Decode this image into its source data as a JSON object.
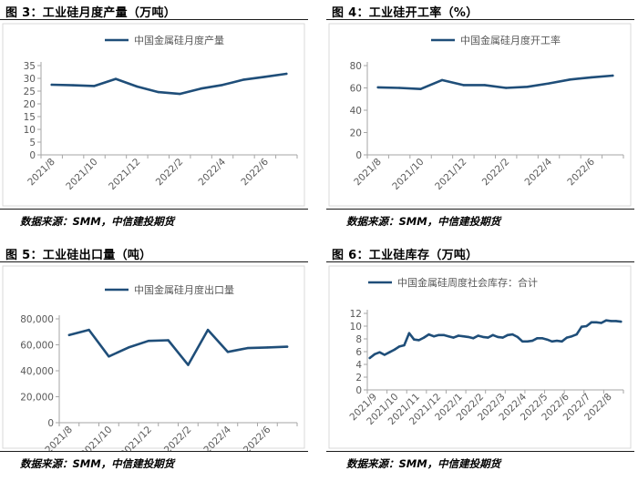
{
  "panels": [
    {
      "id": "fig3",
      "title": "图 3：工业硅月度产量（万吨）",
      "source": "数据来源：SMM，中信建投期货",
      "chart_data": {
        "type": "line",
        "x": [
          "2021/8",
          "2021/9",
          "2021/10",
          "2021/11",
          "2021/12",
          "2022/1",
          "2022/2",
          "2022/3",
          "2022/4",
          "2022/5",
          "2022/6",
          "2022/7"
        ],
        "x_tick_labels": [
          "2021/8",
          "2021/10",
          "2021/12",
          "2022/2",
          "2022/4",
          "2022/6"
        ],
        "y_tick_labels": [
          "0",
          "5",
          "10",
          "15",
          "20",
          "25",
          "30",
          "35"
        ],
        "ylim": [
          0,
          35
        ],
        "grid": false,
        "legend_position": "top-left",
        "series": [
          {
            "name": "中国金属硅月度产量",
            "color": "#1f4e79",
            "values": [
              27.5,
              27.3,
              27.0,
              29.8,
              26.8,
              24.6,
              23.9,
              26.0,
              27.4,
              29.5,
              30.6,
              31.8
            ]
          }
        ]
      }
    },
    {
      "id": "fig4",
      "title": "图 4：工业硅开工率（%）",
      "source": "数据来源：SMM，中信建投期货",
      "chart_data": {
        "type": "line",
        "x": [
          "2021/8",
          "2021/9",
          "2021/10",
          "2021/11",
          "2021/12",
          "2022/1",
          "2022/2",
          "2022/3",
          "2022/4",
          "2022/5",
          "2022/6",
          "2022/7"
        ],
        "x_tick_labels": [
          "2021/8",
          "2021/10",
          "2021/12",
          "2022/2",
          "2022/4",
          "2022/6"
        ],
        "y_tick_labels": [
          "0",
          "20",
          "40",
          "60",
          "80"
        ],
        "ylim": [
          0,
          80
        ],
        "grid": false,
        "legend_position": "top-left",
        "series": [
          {
            "name": "中国金属硅月度开工率",
            "color": "#1f4e79",
            "values": [
              60.5,
              60.0,
              59.0,
              67.0,
              62.5,
              62.5,
              60.0,
              61.0,
              64.0,
              67.5,
              69.5,
              71.0
            ]
          }
        ]
      }
    },
    {
      "id": "fig5",
      "title": "图 5：工业硅出口量（吨）",
      "source": "数据来源：SMM，中信建投期货",
      "chart_data": {
        "type": "line",
        "x": [
          "2021/8",
          "2021/9",
          "2021/10",
          "2021/11",
          "2021/12",
          "2022/1",
          "2022/2",
          "2022/3",
          "2022/4",
          "2022/5",
          "2022/6",
          "2022/7"
        ],
        "x_tick_labels": [
          "2021/8",
          "2021/10",
          "2021/12",
          "2022/2",
          "2022/4",
          "2022/6"
        ],
        "y_tick_labels": [
          "0",
          "20,000",
          "40,000",
          "60,000",
          "80,000"
        ],
        "ylim": [
          0,
          80000
        ],
        "grid": false,
        "legend_position": "top-left",
        "series": [
          {
            "name": "中国金属硅月度出口量",
            "color": "#1f4e79",
            "values": [
              67500,
              71500,
              51000,
              58000,
              63000,
              63500,
              44500,
              71500,
              54500,
              57500,
              58000,
              58500
            ]
          }
        ]
      }
    },
    {
      "id": "fig6",
      "title": "图 6：工业硅库存（万吨）",
      "source": "数据来源：SMM，中信建投期货",
      "chart_data": {
        "type": "line",
        "x": [
          "2021/9/3",
          "2021/9/10",
          "2021/9/17",
          "2021/9/24",
          "2021/10/1",
          "2021/10/8",
          "2021/10/15",
          "2021/10/22",
          "2021/10/29",
          "2021/11/5",
          "2021/11/12",
          "2021/11/19",
          "2021/11/26",
          "2021/12/3",
          "2021/12/10",
          "2021/12/17",
          "2021/12/24",
          "2021/12/31",
          "2022/1/7",
          "2022/1/14",
          "2022/1/21",
          "2022/1/28",
          "2022/2/4",
          "2022/2/11",
          "2022/2/18",
          "2022/2/25",
          "2022/3/4",
          "2022/3/11",
          "2022/3/18",
          "2022/3/25",
          "2022/4/1",
          "2022/4/8",
          "2022/4/15",
          "2022/4/22",
          "2022/4/29",
          "2022/5/6",
          "2022/5/13",
          "2022/5/20",
          "2022/5/27",
          "2022/6/3",
          "2022/6/10",
          "2022/6/17",
          "2022/6/24",
          "2022/7/1",
          "2022/7/8",
          "2022/7/15",
          "2022/7/22",
          "2022/7/29",
          "2022/8/5",
          "2022/8/12",
          "2022/8/19",
          "2022/8/26"
        ],
        "x_tick_labels": [
          "2021/9",
          "2021/10",
          "2021/11",
          "2021/12",
          "2022/1",
          "2022/2",
          "2022/3",
          "2022/4",
          "2022/5",
          "2022/6",
          "2022/7",
          "2022/8"
        ],
        "y_tick_labels": [
          "0",
          "2",
          "4",
          "6",
          "8",
          "10",
          "12"
        ],
        "ylim": [
          0,
          12
        ],
        "grid": false,
        "legend_position": "top-left",
        "series": [
          {
            "name": "中国金属硅周度社会库存：合计",
            "color": "#1f4e79",
            "values": [
              5.0,
              5.6,
              5.9,
              5.5,
              5.9,
              6.3,
              6.8,
              7.0,
              8.9,
              7.9,
              7.8,
              8.2,
              8.7,
              8.4,
              8.6,
              8.6,
              8.4,
              8.2,
              8.5,
              8.4,
              8.3,
              8.1,
              8.5,
              8.3,
              8.2,
              8.6,
              8.3,
              8.2,
              8.6,
              8.7,
              8.3,
              7.6,
              7.6,
              7.7,
              8.1,
              8.1,
              7.9,
              7.6,
              7.7,
              7.6,
              8.2,
              8.4,
              8.7,
              9.9,
              10.0,
              10.6,
              10.6,
              10.5,
              10.9,
              10.8,
              10.8,
              10.7
            ]
          }
        ]
      }
    }
  ]
}
